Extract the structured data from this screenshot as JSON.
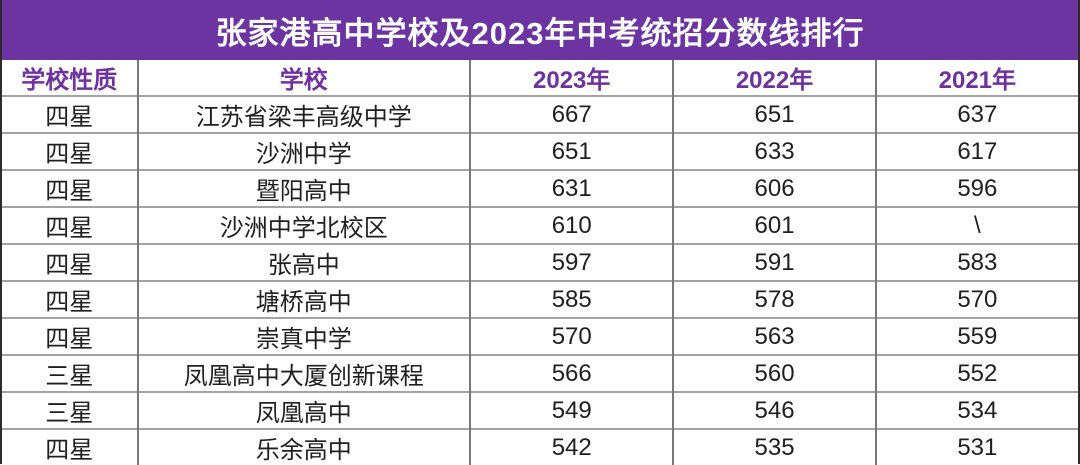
{
  "title_bar": {
    "text": "张家港高中学校及2023年中考统招分数线排行"
  },
  "colors": {
    "title_bar_bg": "#6C34A1",
    "title_bar_text": "#FFFFFF",
    "header_text": "#7030A0",
    "body_text": "#1F1F1F",
    "grid_horizontal": "#A3A3A3",
    "grid_vertical": "#787878",
    "outer_border": "#2B2B2B"
  },
  "chart_data": {
    "type": "table",
    "title": "张家港高中学校及2023年中考统招分数线排行",
    "columns": [
      "学校性质",
      "学校",
      "2023年",
      "2022年",
      "2021年"
    ],
    "rows": [
      [
        "四星",
        "江苏省梁丰高级中学",
        "667",
        "651",
        "637"
      ],
      [
        "四星",
        "沙洲中学",
        "651",
        "633",
        "617"
      ],
      [
        "四星",
        "暨阳高中",
        "631",
        "606",
        "596"
      ],
      [
        "四星",
        "沙洲中学北校区",
        "610",
        "601",
        "\\"
      ],
      [
        "四星",
        "张高中",
        "597",
        "591",
        "583"
      ],
      [
        "四星",
        "塘桥高中",
        "585",
        "578",
        "570"
      ],
      [
        "四星",
        "崇真中学",
        "570",
        "563",
        "559"
      ],
      [
        "三星",
        "凤凰高中大厦创新课程",
        "566",
        "560",
        "552"
      ],
      [
        "三星",
        "凤凰高中",
        "549",
        "546",
        "534"
      ],
      [
        "四星",
        "乐余高中",
        "542",
        "535",
        "531"
      ]
    ]
  }
}
